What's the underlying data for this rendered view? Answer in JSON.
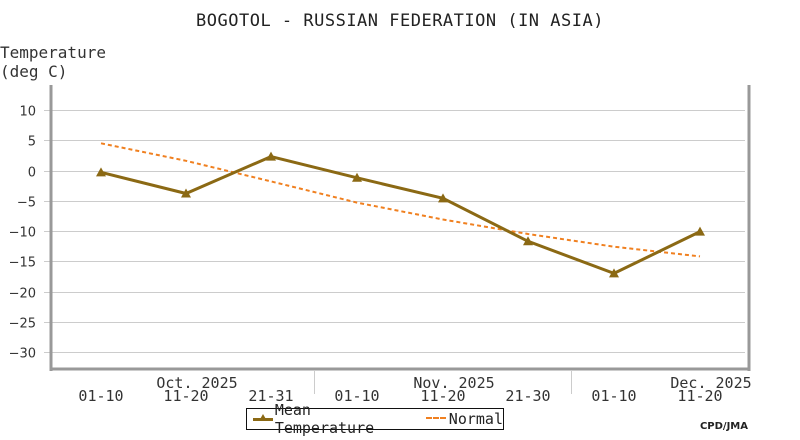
{
  "title": "BOGOTOL - RUSSIAN FEDERATION (IN ASIA)",
  "y_axis": {
    "label_line1": "Temperature",
    "label_line2": "(deg C)"
  },
  "legend": {
    "mean_label": "Mean Temperature",
    "normal_label": "Normal"
  },
  "credit": "CPD/JMA",
  "colors": {
    "mean": "#8B6914",
    "normal": "#F08020",
    "grid": "#cccccc",
    "axis": "#999999"
  },
  "chart_data": {
    "type": "line",
    "title": "BOGOTOL - RUSSIAN FEDERATION (IN ASIA)",
    "xlabel": "",
    "ylabel": "Temperature (deg C)",
    "ylim": [
      -33,
      13
    ],
    "yticks": [
      10,
      5,
      0,
      -5,
      -10,
      -15,
      -20,
      -25,
      -30
    ],
    "grid": true,
    "legend_position": "bottom",
    "categories": [
      "01-10",
      "11-20",
      "21-31",
      "01-10",
      "11-20",
      "21-30",
      "01-10",
      "11-20"
    ],
    "month_labels": [
      {
        "label": "Oct. 2025",
        "index": 1
      },
      {
        "label": "Nov. 2025",
        "index": 4
      },
      {
        "label": "Dec. 2025",
        "index": 7
      }
    ],
    "series": [
      {
        "name": "Mean Temperature",
        "style": "solid-triangle-markers",
        "values": [
          -0.3,
          -3.8,
          2.3,
          -1.2,
          -4.6,
          -11.7,
          -17.0,
          -10.1
        ]
      },
      {
        "name": "Normal",
        "style": "dashed",
        "values": [
          4.5,
          1.6,
          -1.8,
          -5.3,
          -8.1,
          -10.5,
          -12.6,
          -14.2
        ]
      }
    ]
  }
}
